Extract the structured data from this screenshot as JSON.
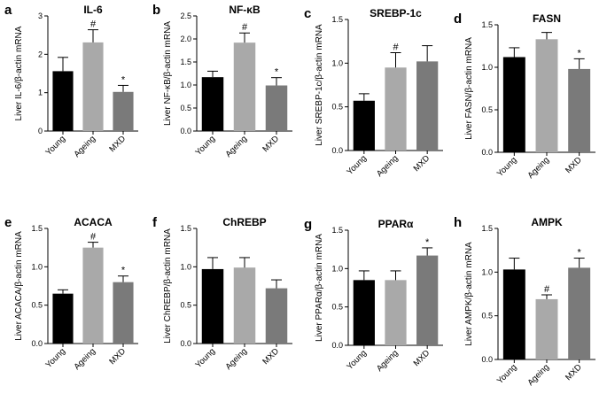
{
  "chart_data": [
    {
      "id": "a",
      "type": "bar",
      "title": "IL-6",
      "ylabel": "Liver IL-6/β-actin mRNA",
      "categories": [
        "Young",
        "Ageing",
        "MXD"
      ],
      "values": [
        1.56,
        2.31,
        1.02
      ],
      "errors": [
        0.36,
        0.33,
        0.17
      ],
      "significance": [
        "",
        "#",
        "*"
      ],
      "ylim": [
        0,
        3
      ],
      "yticks": [
        0,
        1,
        2,
        3
      ],
      "tick_labels": [
        "0",
        "1",
        "2",
        "3"
      ]
    },
    {
      "id": "b",
      "type": "bar",
      "title": "NF-κB",
      "ylabel": "Liver NF-κB/β-actin mRNA",
      "categories": [
        "Young",
        "Ageing",
        "MXD"
      ],
      "values": [
        1.17,
        1.92,
        0.99
      ],
      "errors": [
        0.13,
        0.21,
        0.17
      ],
      "significance": [
        "",
        "#",
        "*"
      ],
      "ylim": [
        0,
        2.5
      ],
      "yticks": [
        0,
        0.5,
        1,
        1.5,
        2,
        2.5
      ],
      "tick_labels": [
        "0.0",
        "0.5",
        "1.0",
        "1.5",
        "2.0",
        "2.5"
      ]
    },
    {
      "id": "c",
      "type": "bar",
      "title": "SREBP-1c",
      "ylabel": "Liver SREBP-1c/β-actin mRNA",
      "categories": [
        "Young",
        "Ageing",
        "MXD"
      ],
      "values": [
        0.57,
        0.95,
        1.02
      ],
      "errors": [
        0.08,
        0.17,
        0.18
      ],
      "significance": [
        "",
        "#",
        ""
      ],
      "ylim": [
        0,
        1.5
      ],
      "yticks": [
        0,
        0.5,
        1,
        1.5
      ],
      "tick_labels": [
        "0.0",
        "0.5",
        "1.0",
        "1.5"
      ]
    },
    {
      "id": "d",
      "type": "bar",
      "title": "FASN",
      "ylabel": "Liver FASN/β-actin mRNA",
      "categories": [
        "Young",
        "Ageing",
        "MXD"
      ],
      "values": [
        1.12,
        1.33,
        0.98
      ],
      "errors": [
        0.11,
        0.08,
        0.12
      ],
      "significance": [
        "",
        "",
        "*"
      ],
      "ylim": [
        0,
        1.5
      ],
      "yticks": [
        0,
        0.5,
        1,
        1.5
      ],
      "tick_labels": [
        "0.0",
        "0.5",
        "1.0",
        "1.5"
      ]
    },
    {
      "id": "e",
      "type": "bar",
      "title": "ACACA",
      "ylabel": "Liver ACACA/β-actin mRNA",
      "categories": [
        "Young",
        "Ageing",
        "MXD"
      ],
      "values": [
        0.65,
        1.25,
        0.8
      ],
      "errors": [
        0.05,
        0.07,
        0.08
      ],
      "significance": [
        "",
        "#",
        "*"
      ],
      "ylim": [
        0,
        1.5
      ],
      "yticks": [
        0,
        0.5,
        1,
        1.5
      ],
      "tick_labels": [
        "0.0",
        "0.5",
        "1.0",
        "1.5"
      ]
    },
    {
      "id": "f",
      "type": "bar",
      "title": "ChREBP",
      "ylabel": "Liver ChREBP/β-actin mRNA",
      "categories": [
        "Young",
        "Ageing",
        "MXD"
      ],
      "values": [
        0.97,
        0.99,
        0.72
      ],
      "errors": [
        0.15,
        0.13,
        0.11
      ],
      "significance": [
        "",
        "",
        ""
      ],
      "ylim": [
        0,
        1.5
      ],
      "yticks": [
        0,
        0.5,
        1,
        1.5
      ],
      "tick_labels": [
        "0.0",
        "0.5",
        "1.0",
        "1.5"
      ]
    },
    {
      "id": "g",
      "type": "bar",
      "title": "PPARα",
      "ylabel": "Liver PPARα/β-actin mRNA",
      "categories": [
        "Young",
        "Ageing",
        "MXD"
      ],
      "values": [
        0.85,
        0.85,
        1.17
      ],
      "errors": [
        0.12,
        0.12,
        0.1
      ],
      "significance": [
        "",
        "",
        "*"
      ],
      "ylim": [
        0,
        1.5
      ],
      "yticks": [
        0,
        0.5,
        1,
        1.5
      ],
      "tick_labels": [
        "0.0",
        "0.5",
        "1.0",
        "1.5"
      ]
    },
    {
      "id": "h",
      "type": "bar",
      "title": "AMPK",
      "ylabel": "Liver AMPK/β-actin mRNA",
      "categories": [
        "Young",
        "Ageing",
        "MXD"
      ],
      "values": [
        1.03,
        0.69,
        1.05
      ],
      "errors": [
        0.13,
        0.05,
        0.11
      ],
      "significance": [
        "",
        "#",
        "*"
      ],
      "ylim": [
        0,
        1.5
      ],
      "yticks": [
        0,
        0.5,
        1,
        1.5
      ],
      "tick_labels": [
        "0.0",
        "0.5",
        "1.0",
        "1.5"
      ]
    }
  ],
  "colors": {
    "Young": "#000000",
    "Ageing": "#a9a9a9",
    "MXD": "#7a7a7a"
  }
}
